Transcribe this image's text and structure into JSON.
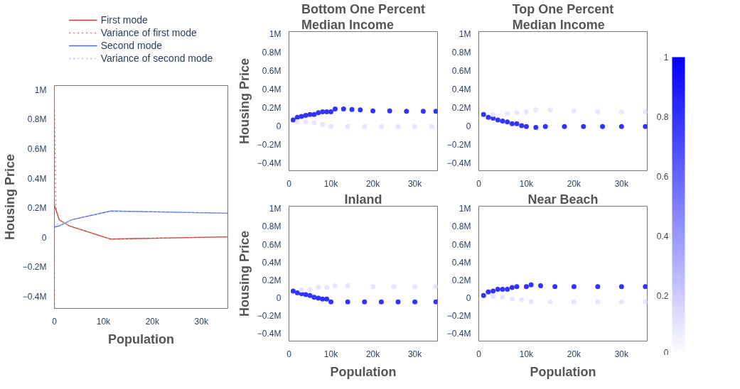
{
  "chart_data": [
    {
      "type": "line",
      "xlabel": "Population",
      "ylabel": "Housing Price",
      "legend": "top",
      "grid": false,
      "marker": "none",
      "xlim": [
        0,
        35400
      ],
      "ylim": [
        -480000,
        1030000
      ],
      "xticks": [
        0,
        {
          "value": 10000,
          "label": "10k"
        },
        {
          "value": 20000,
          "label": "20k"
        },
        {
          "value": 30000,
          "label": "30k"
        }
      ],
      "yticks": [
        {
          "value": -400000,
          "label": "−0.4M"
        },
        {
          "value": -200000,
          "label": "−0.2M"
        },
        0,
        {
          "value": 200000,
          "label": "0.2M"
        },
        {
          "value": 400000,
          "label": "0.4M"
        },
        {
          "value": 600000,
          "label": "0.6M"
        },
        {
          "value": 800000,
          "label": "0.8M"
        },
        {
          "value": 1000000,
          "label": "1M"
        }
      ],
      "series": [
        {
          "name": "First mode",
          "color": "#c0392b",
          "line_style": "solid",
          "x": [
            0,
            1000,
            3000,
            11500,
            35400
          ],
          "values": [
            220000,
            120000,
            80000,
            -10000,
            5000
          ]
        },
        {
          "name": "Variance of first mode",
          "color": "#e07b7b",
          "line_style": "dotted",
          "x": [
            50,
            0,
            300,
            800,
            1500,
            3000,
            11500,
            35400
          ],
          "values": [
            -480000,
            1000000,
            220000,
            130000,
            110000,
            80000,
            -10000,
            5000
          ]
        },
        {
          "name": "Second mode",
          "color": "#4c6ee0",
          "line_style": "solid",
          "x": [
            0,
            1000,
            3500,
            11500,
            35400
          ],
          "values": [
            70000,
            80000,
            120000,
            180000,
            165000
          ]
        },
        {
          "name": "Variance of second mode",
          "color": "#a9b8f0",
          "line_style": "dotted",
          "x": [
            0,
            500,
            1000,
            3500,
            11500,
            35400
          ],
          "values": [
            50000,
            100000,
            80000,
            120000,
            180000,
            165000
          ]
        }
      ]
    },
    {
      "type": "scatter",
      "title": "Bottom One Percent\nMedian Income",
      "ylabel": "Housing Price",
      "grid": false,
      "marker": "circle",
      "clim": [
        0,
        1
      ],
      "cticks": [
        0,
        0.2,
        0.4,
        0.6,
        0.8,
        1
      ],
      "xlim": [
        0,
        35400
      ],
      "ylim": [
        -480000,
        1030000
      ],
      "xticks": [
        0,
        {
          "value": 10000,
          "label": "10k"
        },
        {
          "value": 20000,
          "label": "20k"
        },
        {
          "value": 30000,
          "label": "30k"
        }
      ],
      "yticks": [
        {
          "value": -400000,
          "label": "−0.4M"
        },
        {
          "value": -200000,
          "label": "−0.2M"
        },
        0,
        {
          "value": 200000,
          "label": "0.2M"
        },
        {
          "value": 400000,
          "label": "0.4M"
        },
        {
          "value": 600000,
          "label": "0.6M"
        },
        {
          "value": 800000,
          "label": "0.8M"
        },
        {
          "value": 1000000,
          "label": "1M"
        }
      ],
      "series": [
        {
          "x": [
            1000,
            2000,
            3000,
            4000,
            5000,
            6000,
            7000,
            8000,
            9000,
            10000,
            11000,
            13000,
            15000,
            17000,
            20000,
            24000,
            28000,
            32000,
            35000
          ],
          "values": [
            70000,
            100000,
            110000,
            120000,
            130000,
            130000,
            150000,
            160000,
            160000,
            160000,
            190000,
            190000,
            185000,
            180000,
            170000,
            170000,
            165000,
            165000,
            165000
          ],
          "cvalues": [
            0.8,
            0.8,
            0.8,
            0.8,
            0.8,
            0.8,
            0.8,
            0.8,
            0.8,
            0.8,
            0.8,
            0.8,
            0.8,
            0.8,
            0.8,
            0.8,
            0.8,
            0.8,
            0.8
          ]
        },
        {
          "x": [
            2000,
            4000,
            6000,
            8000,
            10000,
            14000,
            18000,
            22000,
            26000,
            30000,
            34000
          ],
          "values": [
            50000,
            50000,
            40000,
            20000,
            0,
            0,
            0,
            0,
            0,
            0,
            0
          ],
          "cvalues": [
            0.1,
            0.1,
            0.1,
            0.1,
            0.1,
            0.1,
            0.1,
            0.1,
            0.1,
            0.1,
            0.1
          ]
        }
      ]
    },
    {
      "type": "scatter",
      "title": "Top One Percent\nMedian Income",
      "grid": false,
      "marker": "circle",
      "xlim": [
        0,
        35400
      ],
      "ylim": [
        -480000,
        1030000
      ],
      "xticks": [
        0,
        {
          "value": 10000,
          "label": "10k"
        },
        {
          "value": 20000,
          "label": "20k"
        },
        {
          "value": 30000,
          "label": "30k"
        }
      ],
      "yticks": [
        {
          "value": -400000,
          "label": "−0.4M"
        },
        {
          "value": -200000,
          "label": "−0.2M"
        },
        0,
        {
          "value": 200000,
          "label": "0.2M"
        },
        {
          "value": 400000,
          "label": "0.4M"
        },
        {
          "value": 600000,
          "label": "0.6M"
        },
        {
          "value": 800000,
          "label": "0.8M"
        },
        {
          "value": 1000000,
          "label": "1M"
        }
      ],
      "series": [
        {
          "color": "#3333ff",
          "x": [
            1000,
            2000,
            3000,
            4000,
            5000,
            6000,
            7000,
            8000,
            9000,
            10000,
            12000,
            14000,
            18000,
            22000,
            26000,
            30000,
            35000
          ],
          "values": [
            130000,
            100000,
            90000,
            70000,
            60000,
            50000,
            30000,
            30000,
            10000,
            0,
            -10000,
            0,
            0,
            0,
            0,
            0,
            0
          ]
        },
        {
          "color": "#e6e6ff",
          "x": [
            3000,
            6000,
            8000,
            10000,
            12000,
            15000,
            20000,
            25000,
            30000,
            35000
          ],
          "values": [
            130000,
            140000,
            150000,
            160000,
            180000,
            180000,
            170000,
            160000,
            160000,
            160000
          ]
        }
      ]
    },
    {
      "type": "scatter",
      "title": "Inland",
      "xlabel": "Population",
      "ylabel": "Housing Price",
      "grid": false,
      "marker": "circle",
      "xlim": [
        0,
        35400
      ],
      "ylim": [
        -480000,
        1030000
      ],
      "xticks": [
        0,
        {
          "value": 10000,
          "label": "10k"
        },
        {
          "value": 20000,
          "label": "20k"
        },
        {
          "value": 30000,
          "label": "30k"
        }
      ],
      "yticks": [
        {
          "value": -400000,
          "label": "−0.4M"
        },
        {
          "value": -200000,
          "label": "−0.2M"
        },
        0,
        {
          "value": 200000,
          "label": "0.2M"
        },
        {
          "value": 400000,
          "label": "0.4M"
        },
        {
          "value": 600000,
          "label": "0.6M"
        },
        {
          "value": 800000,
          "label": "0.8M"
        },
        {
          "value": 1000000,
          "label": "1M"
        }
      ],
      "series": [
        {
          "color": "#3333ff",
          "x": [
            1000,
            2000,
            3000,
            4000,
            5000,
            6000,
            7000,
            8000,
            9000,
            10000,
            14000,
            18000,
            22000,
            26000,
            30000,
            35000
          ],
          "values": [
            80000,
            60000,
            50000,
            40000,
            30000,
            10000,
            0,
            -10000,
            -10000,
            -40000,
            -40000,
            -40000,
            -40000,
            -40000,
            -40000,
            -40000
          ]
        },
        {
          "color": "#e6e6ff",
          "x": [
            3000,
            5000,
            7000,
            9000,
            11000,
            14000,
            20000,
            25000,
            30000,
            35000
          ],
          "values": [
            90000,
            100000,
            120000,
            120000,
            140000,
            140000,
            130000,
            130000,
            130000,
            130000
          ]
        }
      ]
    },
    {
      "type": "scatter",
      "title": "Near Beach",
      "xlabel": "Population",
      "grid": false,
      "marker": "circle",
      "xlim": [
        0,
        35400
      ],
      "ylim": [
        -480000,
        1030000
      ],
      "xticks": [
        0,
        {
          "value": 10000,
          "label": "10k"
        },
        {
          "value": 20000,
          "label": "20k"
        },
        {
          "value": 30000,
          "label": "30k"
        }
      ],
      "yticks": [
        {
          "value": -400000,
          "label": "−0.4M"
        },
        {
          "value": -200000,
          "label": "−0.2M"
        },
        0,
        {
          "value": 200000,
          "label": "0.2M"
        },
        {
          "value": 400000,
          "label": "0.4M"
        },
        {
          "value": 600000,
          "label": "0.6M"
        },
        {
          "value": 800000,
          "label": "0.8M"
        },
        {
          "value": 1000000,
          "label": "1M"
        }
      ],
      "series": [
        {
          "color": "#3333ff",
          "x": [
            1000,
            2000,
            3000,
            4000,
            5000,
            6000,
            7000,
            8000,
            10000,
            11000,
            13000,
            16000,
            20000,
            25000,
            30000,
            35000
          ],
          "values": [
            30000,
            70000,
            80000,
            100000,
            100000,
            100000,
            120000,
            130000,
            130000,
            150000,
            140000,
            130000,
            130000,
            130000,
            130000,
            130000
          ]
        },
        {
          "color": "#e6e6ff",
          "x": [
            3000,
            5000,
            7000,
            9000,
            11000,
            15000,
            20000,
            25000,
            30000,
            35000
          ],
          "values": [
            20000,
            10000,
            -10000,
            -20000,
            -40000,
            -40000,
            -40000,
            -40000,
            -40000,
            -40000
          ]
        }
      ]
    }
  ]
}
